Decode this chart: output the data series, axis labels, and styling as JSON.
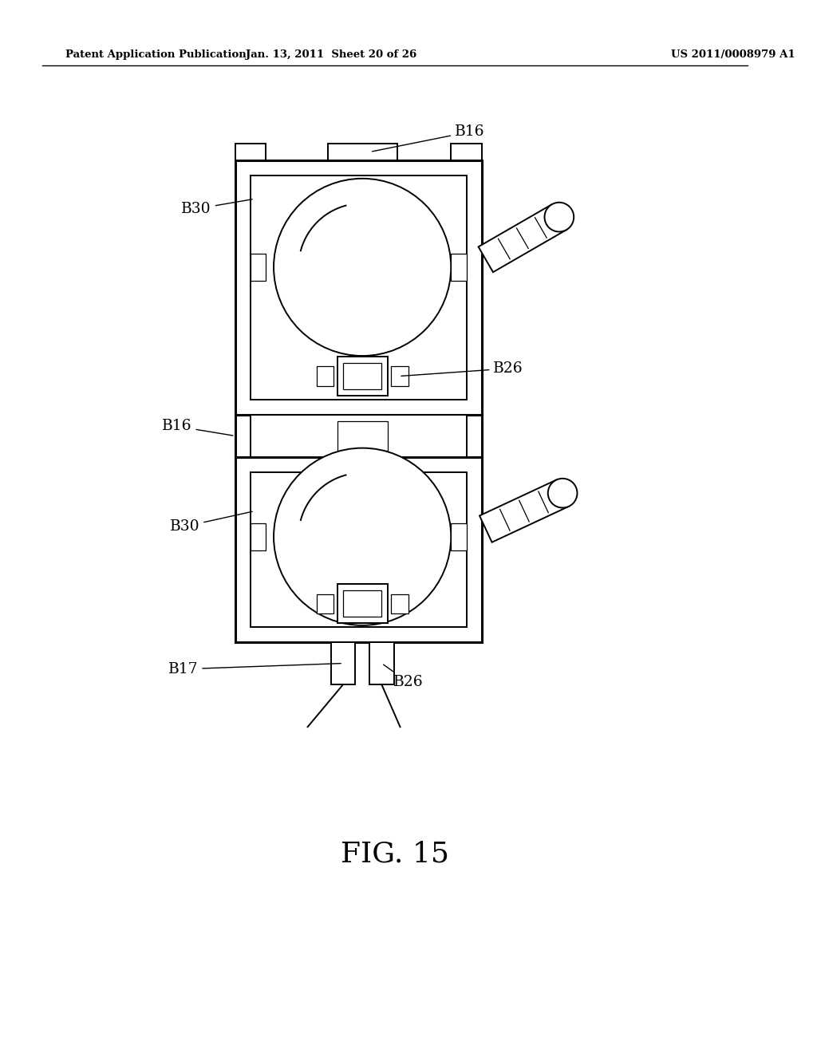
{
  "bg_color": "#ffffff",
  "line_color": "#000000",
  "header_left": "Patent Application Publication",
  "header_mid": "Jan. 13, 2011  Sheet 20 of 26",
  "header_right": "US 2011/0008979 A1",
  "figure_label": "FIG. 15",
  "lw_thick": 2.2,
  "lw_main": 1.4,
  "lw_thin": 0.9
}
